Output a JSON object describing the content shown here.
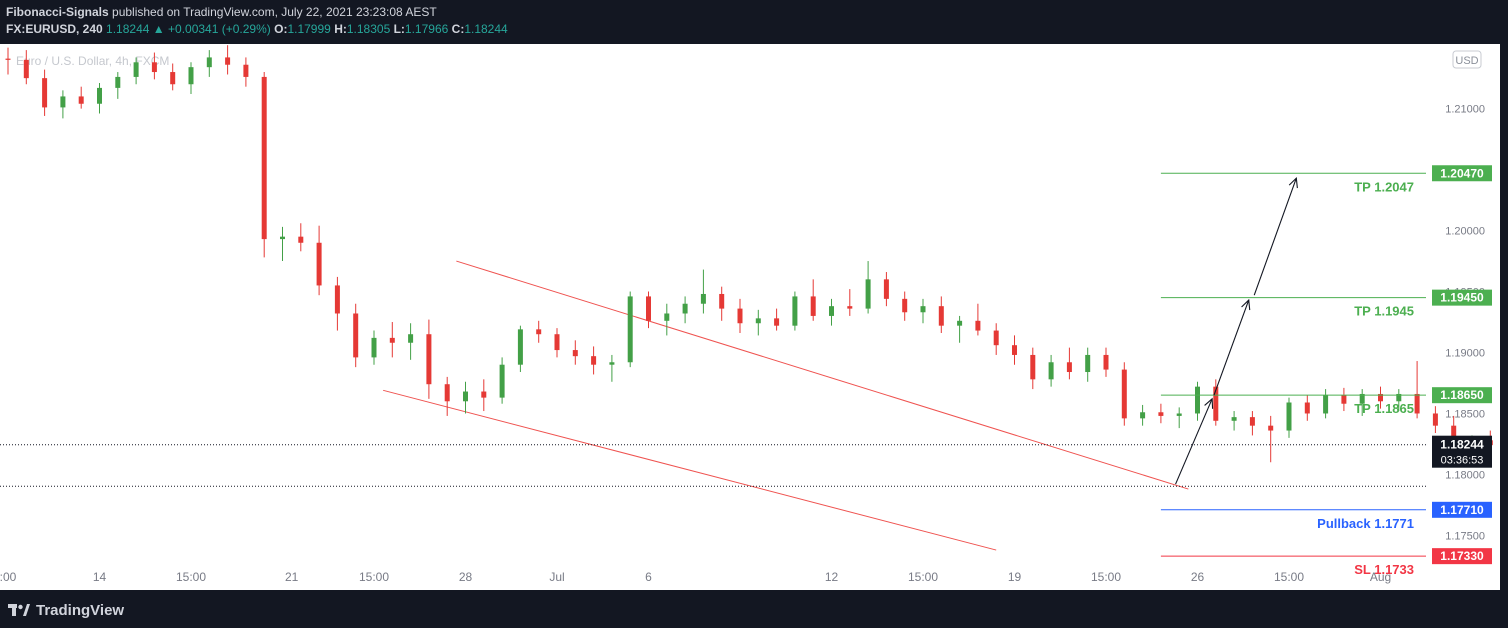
{
  "header": {
    "author": "Fibonacci-Signals",
    "published_text": "published on TradingView.com, July 22, 2021 23:23:08 AEST",
    "symbol": "FX:EURUSD, 240",
    "last": "1.18244",
    "change": "+0.00341 (+0.29%)",
    "o_label": "O:",
    "o_value": "1.17999",
    "h_label": "H:",
    "h_value": "1.18305",
    "l_label": "L:",
    "l_value": "1.17966",
    "c_label": "C:",
    "c_value": "1.18244"
  },
  "footer": {
    "brand": "TradingView"
  },
  "colors": {
    "background": "#131722",
    "up": "#43a047",
    "down": "#e53935",
    "channel": "#ef5350",
    "tp_level": "#4caf50",
    "pullback_level": "#2962ff",
    "sl_level": "#f23645"
  },
  "chart_data": {
    "type": "candlestick",
    "symbol_label": "Euro / U.S. Dollar, 4h, FXCM",
    "currency": "USD",
    "ylim": [
      1.172,
      1.2153
    ],
    "y_ticks": [
      "1.21000",
      "1.20500",
      "1.20000",
      "1.19500",
      "1.19000",
      "1.18500",
      "1.18000",
      "1.17500"
    ],
    "x_ticks": [
      {
        "label": ":00",
        "x": 0
      },
      {
        "label": "14",
        "x": 5
      },
      {
        "label": "15:00",
        "x": 10
      },
      {
        "label": "21",
        "x": 15.5
      },
      {
        "label": "15:00",
        "x": 20
      },
      {
        "label": "28",
        "x": 25
      },
      {
        "label": "Jul",
        "x": 30
      },
      {
        "label": "6",
        "x": 35
      },
      {
        "label": "12",
        "x": 45
      },
      {
        "label": "15:00",
        "x": 50
      },
      {
        "label": "19",
        "x": 55
      },
      {
        "label": "15:00",
        "x": 60
      },
      {
        "label": "26",
        "x": 65
      },
      {
        "label": "15:00",
        "x": 70
      },
      {
        "label": "Aug",
        "x": 75
      }
    ],
    "last_price": {
      "value": 1.18244,
      "label": "1.18244",
      "countdown": "03:36:53"
    },
    "levels": [
      {
        "label": "TP 1.2047",
        "axis_label": "1.20470",
        "value": 1.2047,
        "kind": "tp",
        "x_start": 63
      },
      {
        "label": "TP 1.1945",
        "axis_label": "1.19450",
        "value": 1.1945,
        "kind": "tp",
        "x_start": 63
      },
      {
        "label": "TP 1.1865",
        "axis_label": "1.18650",
        "value": 1.1865,
        "kind": "tp",
        "x_start": 63
      },
      {
        "label": "Pullback 1.1771",
        "axis_label": "1.17710",
        "value": 1.1771,
        "kind": "pullback",
        "x_start": 63
      },
      {
        "label": "SL 1.1733",
        "axis_label": "1.17330",
        "value": 1.1733,
        "kind": "sl",
        "x_start": 63
      }
    ],
    "channel": {
      "upper": [
        [
          24.5,
          1.1975
        ],
        [
          64.5,
          1.1788
        ]
      ],
      "lower": [
        [
          20.5,
          1.1869
        ],
        [
          54,
          1.1738
        ]
      ]
    },
    "arrows": [
      [
        [
          63.8,
          1.1792
        ],
        [
          65.8,
          1.1862
        ]
      ],
      [
        [
          65.9,
          1.1865
        ],
        [
          67.8,
          1.1943
        ]
      ],
      [
        [
          68.1,
          1.1947
        ],
        [
          70.4,
          1.2043
        ]
      ]
    ],
    "candles": [
      [
        1.2141,
        1.215,
        1.2128,
        1.214
      ],
      [
        1.214,
        1.2148,
        1.212,
        1.2125
      ],
      [
        1.2125,
        1.2132,
        1.2094,
        1.2101
      ],
      [
        1.2101,
        1.2115,
        1.2092,
        1.211
      ],
      [
        1.211,
        1.2118,
        1.21,
        1.2104
      ],
      [
        1.2104,
        1.2121,
        1.2096,
        1.2117
      ],
      [
        1.2117,
        1.213,
        1.2108,
        1.2126
      ],
      [
        1.2126,
        1.2142,
        1.212,
        1.2138
      ],
      [
        1.2138,
        1.2146,
        1.2124,
        1.213
      ],
      [
        1.213,
        1.2137,
        1.2115,
        1.212
      ],
      [
        1.212,
        1.2138,
        1.2112,
        1.2134
      ],
      [
        1.2134,
        1.2148,
        1.2126,
        1.2142
      ],
      [
        1.2142,
        1.2152,
        1.2128,
        1.2136
      ],
      [
        1.2136,
        1.2142,
        1.2118,
        1.2126
      ],
      [
        1.2126,
        1.213,
        1.1978,
        1.1993
      ],
      [
        1.1993,
        1.2003,
        1.1975,
        1.1995
      ],
      [
        1.1995,
        1.2006,
        1.1983,
        1.199
      ],
      [
        1.199,
        1.2004,
        1.1947,
        1.1955
      ],
      [
        1.1955,
        1.1962,
        1.1918,
        1.1932
      ],
      [
        1.1932,
        1.194,
        1.1888,
        1.1896
      ],
      [
        1.1896,
        1.1918,
        1.189,
        1.1912
      ],
      [
        1.1912,
        1.1925,
        1.1896,
        1.1908
      ],
      [
        1.1908,
        1.1924,
        1.1894,
        1.1915
      ],
      [
        1.1915,
        1.1927,
        1.1862,
        1.1874
      ],
      [
        1.1874,
        1.188,
        1.1848,
        1.186
      ],
      [
        1.186,
        1.1876,
        1.185,
        1.1868
      ],
      [
        1.1868,
        1.1878,
        1.1852,
        1.1863
      ],
      [
        1.1863,
        1.1896,
        1.1858,
        1.189
      ],
      [
        1.189,
        1.1922,
        1.1884,
        1.1919
      ],
      [
        1.1919,
        1.1926,
        1.1908,
        1.1915
      ],
      [
        1.1915,
        1.192,
        1.1896,
        1.1902
      ],
      [
        1.1902,
        1.191,
        1.189,
        1.1897
      ],
      [
        1.1897,
        1.1905,
        1.1882,
        1.189
      ],
      [
        1.189,
        1.1898,
        1.1876,
        1.1892
      ],
      [
        1.1892,
        1.195,
        1.1888,
        1.1946
      ],
      [
        1.1946,
        1.195,
        1.192,
        1.1926
      ],
      [
        1.1926,
        1.194,
        1.1914,
        1.1932
      ],
      [
        1.1932,
        1.1946,
        1.1924,
        1.194
      ],
      [
        1.194,
        1.1968,
        1.1932,
        1.1948
      ],
      [
        1.1948,
        1.1954,
        1.1926,
        1.1936
      ],
      [
        1.1936,
        1.1944,
        1.1916,
        1.1924
      ],
      [
        1.1924,
        1.1935,
        1.1914,
        1.1928
      ],
      [
        1.1928,
        1.1936,
        1.1918,
        1.1922
      ],
      [
        1.1922,
        1.195,
        1.1918,
        1.1946
      ],
      [
        1.1946,
        1.196,
        1.1926,
        1.193
      ],
      [
        1.193,
        1.1944,
        1.1922,
        1.1938
      ],
      [
        1.1938,
        1.1952,
        1.193,
        1.1936
      ],
      [
        1.1936,
        1.1975,
        1.1932,
        1.196
      ],
      [
        1.196,
        1.1966,
        1.1938,
        1.1944
      ],
      [
        1.1944,
        1.195,
        1.1926,
        1.1933
      ],
      [
        1.1933,
        1.1944,
        1.1924,
        1.1938
      ],
      [
        1.1938,
        1.1946,
        1.1916,
        1.1922
      ],
      [
        1.1922,
        1.193,
        1.1908,
        1.1926
      ],
      [
        1.1926,
        1.194,
        1.1914,
        1.1918
      ],
      [
        1.1918,
        1.1924,
        1.1898,
        1.1906
      ],
      [
        1.1906,
        1.1914,
        1.189,
        1.1898
      ],
      [
        1.1898,
        1.1904,
        1.187,
        1.1878
      ],
      [
        1.1878,
        1.1898,
        1.1872,
        1.1892
      ],
      [
        1.1892,
        1.1904,
        1.1878,
        1.1884
      ],
      [
        1.1884,
        1.1904,
        1.1876,
        1.1898
      ],
      [
        1.1898,
        1.1904,
        1.188,
        1.1886
      ],
      [
        1.1886,
        1.1892,
        1.184,
        1.1846
      ],
      [
        1.1846,
        1.1857,
        1.184,
        1.1851
      ],
      [
        1.1851,
        1.1858,
        1.1842,
        1.1848
      ],
      [
        1.1848,
        1.1855,
        1.1838,
        1.185
      ],
      [
        1.185,
        1.1876,
        1.1844,
        1.1872
      ],
      [
        1.1872,
        1.1878,
        1.184,
        1.1844
      ],
      [
        1.1844,
        1.1852,
        1.1836,
        1.1847
      ],
      [
        1.1847,
        1.1852,
        1.1832,
        1.184
      ],
      [
        1.184,
        1.1848,
        1.181,
        1.1836
      ],
      [
        1.1836,
        1.1863,
        1.183,
        1.1859
      ],
      [
        1.1859,
        1.1865,
        1.1844,
        1.185
      ],
      [
        1.185,
        1.187,
        1.1846,
        1.1865
      ],
      [
        1.1865,
        1.1871,
        1.1852,
        1.1858
      ],
      [
        1.1858,
        1.187,
        1.1848,
        1.1866
      ],
      [
        1.1866,
        1.1872,
        1.1854,
        1.186
      ],
      [
        1.186,
        1.187,
        1.1852,
        1.1866
      ],
      [
        1.1866,
        1.1893,
        1.1846,
        1.185
      ],
      [
        1.185,
        1.1856,
        1.1834,
        1.184
      ],
      [
        1.184,
        1.1848,
        1.1816,
        1.1822
      ],
      [
        1.1822,
        1.1832,
        1.1814,
        1.1828
      ],
      [
        1.1828,
        1.1836,
        1.1818,
        1.1824
      ],
      [
        1.1824,
        1.1833,
        1.1814,
        1.1826
      ],
      [
        1.1826,
        1.1838,
        1.1818,
        1.1822
      ],
      [
        1.1822,
        1.1826,
        1.18,
        1.1808
      ],
      [
        1.1808,
        1.1812,
        1.1783,
        1.1798
      ],
      [
        1.1798,
        1.1806,
        1.1788,
        1.1793
      ],
      [
        1.1793,
        1.1806,
        1.1788,
        1.1802
      ],
      [
        1.1802,
        1.1835,
        1.1798,
        1.183
      ],
      [
        1.183,
        1.1864,
        1.1825,
        1.1858
      ],
      [
        1.1858,
        1.1864,
        1.1844,
        1.1849
      ],
      [
        1.1849,
        1.1856,
        1.1836,
        1.1842
      ],
      [
        1.1842,
        1.1848,
        1.1828,
        1.1844
      ],
      [
        1.1844,
        1.1852,
        1.183,
        1.1838
      ],
      [
        1.1838,
        1.1878,
        1.1834,
        1.1872
      ],
      [
        1.1872,
        1.1878,
        1.1856,
        1.1864
      ],
      [
        1.1864,
        1.188,
        1.1856,
        1.1876
      ],
      [
        1.1876,
        1.188,
        1.1862,
        1.1866
      ],
      [
        1.1866,
        1.1874,
        1.1858,
        1.187
      ],
      [
        1.187,
        1.1875,
        1.186,
        1.1864
      ],
      [
        1.1864,
        1.187,
        1.1838,
        1.1848
      ],
      [
        1.1848,
        1.1866,
        1.1844,
        1.186
      ],
      [
        1.186,
        1.1875,
        1.1852,
        1.1866
      ],
      [
        1.1866,
        1.1874,
        1.1856,
        1.1862
      ],
      [
        1.1862,
        1.1868,
        1.185,
        1.1854
      ],
      [
        1.1854,
        1.1858,
        1.18,
        1.1806
      ],
      [
        1.1806,
        1.1815,
        1.18,
        1.181
      ],
      [
        1.181,
        1.1816,
        1.1776,
        1.1781
      ],
      [
        1.1781,
        1.1792,
        1.1776,
        1.1788
      ],
      [
        1.1788,
        1.1796,
        1.1782,
        1.1785
      ],
      [
        1.1785,
        1.1792,
        1.178,
        1.1787
      ],
      [
        1.1787,
        1.1814,
        1.1782,
        1.1808
      ],
      [
        1.1808,
        1.1834,
        1.1804,
        1.183
      ],
      [
        1.183,
        1.1844,
        1.1824,
        1.1839
      ],
      [
        1.1839,
        1.1845,
        1.183,
        1.1836
      ],
      [
        1.1836,
        1.1844,
        1.1828,
        1.184
      ],
      [
        1.184,
        1.1845,
        1.1832,
        1.1836
      ],
      [
        1.1836,
        1.1852,
        1.1834,
        1.185
      ],
      [
        1.185,
        1.1852,
        1.1806,
        1.181
      ],
      [
        1.181,
        1.1818,
        1.1802,
        1.1806
      ],
      [
        1.1806,
        1.1812,
        1.1798,
        1.181
      ],
      [
        1.181,
        1.182,
        1.1804,
        1.1814
      ],
      [
        1.1814,
        1.182,
        1.1806,
        1.1812
      ],
      [
        1.1812,
        1.1826,
        1.1808,
        1.1822
      ],
      [
        1.1822,
        1.1826,
        1.1798,
        1.1806
      ],
      [
        1.1806,
        1.1818,
        1.18,
        1.1814
      ],
      [
        1.1814,
        1.182,
        1.1806,
        1.181
      ],
      [
        1.181,
        1.1816,
        1.1802,
        1.1812
      ],
      [
        1.1812,
        1.1818,
        1.18,
        1.1806
      ],
      [
        1.1806,
        1.1816,
        1.1796,
        1.181
      ],
      [
        1.181,
        1.1814,
        1.176,
        1.1766
      ],
      [
        1.1766,
        1.179,
        1.176,
        1.1784
      ],
      [
        1.1784,
        1.1826,
        1.178,
        1.1802
      ],
      [
        1.1802,
        1.1808,
        1.1794,
        1.1798
      ],
      [
        1.1798,
        1.1805,
        1.179,
        1.18
      ],
      [
        1.18,
        1.1806,
        1.1792,
        1.1796
      ],
      [
        1.1796,
        1.18,
        1.1786,
        1.1792
      ],
      [
        1.1792,
        1.1798,
        1.1766,
        1.1772
      ],
      [
        1.1772,
        1.1778,
        1.1752,
        1.1778
      ],
      [
        1.1778,
        1.1786,
        1.177,
        1.1782
      ],
      [
        1.1782,
        1.1788,
        1.1774,
        1.178
      ],
      [
        1.178,
        1.1786,
        1.177,
        1.1784
      ],
      [
        1.1784,
        1.179,
        1.177,
        1.1775
      ],
      [
        1.1775,
        1.1788,
        1.1768,
        1.1786
      ],
      [
        1.1786,
        1.1788,
        1.1754,
        1.1765
      ],
      [
        1.1765,
        1.1776,
        1.1758,
        1.1772
      ],
      [
        1.1772,
        1.1806,
        1.177,
        1.18
      ],
      [
        1.18,
        1.1808,
        1.1794,
        1.1804
      ],
      [
        1.1804,
        1.181,
        1.1794,
        1.1796
      ],
      [
        1.1796,
        1.1806,
        1.179,
        1.18
      ],
      [
        1.18,
        1.1806,
        1.179,
        1.1794
      ],
      [
        1.1794,
        1.1808,
        1.179,
        1.1806
      ],
      [
        1.1806,
        1.1812,
        1.1768,
        1.1802
      ],
      [
        1.1802,
        1.1808,
        1.1796,
        1.18
      ],
      [
        1.18,
        1.183,
        1.1797,
        1.1824
      ]
    ]
  }
}
